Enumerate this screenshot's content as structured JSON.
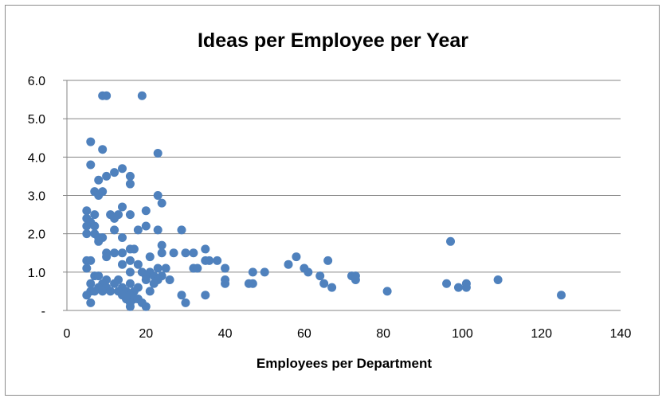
{
  "chart_data": {
    "type": "scatter",
    "title": "Ideas per Employee per Year",
    "xlabel": "Employees per Department",
    "ylabel": "",
    "xlim": [
      0,
      140
    ],
    "ylim": [
      0,
      6
    ],
    "x_ticks": [
      "0",
      "20",
      "40",
      "60",
      "80",
      "100",
      "120",
      "140"
    ],
    "y_ticks": [
      "-",
      "1.0",
      "2.0",
      "3.0",
      "4.0",
      "5.0",
      "6.0"
    ],
    "grid": "horizontal",
    "legend": "none",
    "marker_color": "#4f81bd",
    "points": [
      [
        9,
        5.6
      ],
      [
        10,
        5.6
      ],
      [
        19,
        5.6
      ],
      [
        6,
        4.4
      ],
      [
        9,
        4.2
      ],
      [
        23,
        4.1
      ],
      [
        6,
        3.8
      ],
      [
        14,
        3.7
      ],
      [
        12,
        3.6
      ],
      [
        10,
        3.5
      ],
      [
        16,
        3.5
      ],
      [
        8,
        3.4
      ],
      [
        16,
        3.3
      ],
      [
        7,
        3.1
      ],
      [
        8,
        3.0
      ],
      [
        9,
        3.1
      ],
      [
        23,
        3.0
      ],
      [
        24,
        2.8
      ],
      [
        14,
        2.7
      ],
      [
        5,
        2.6
      ],
      [
        20,
        2.6
      ],
      [
        7,
        2.5
      ],
      [
        11,
        2.5
      ],
      [
        13,
        2.5
      ],
      [
        16,
        2.5
      ],
      [
        5,
        2.4
      ],
      [
        12,
        2.4
      ],
      [
        6,
        2.3
      ],
      [
        5,
        2.2
      ],
      [
        7,
        2.2
      ],
      [
        20,
        2.2
      ],
      [
        12,
        2.1
      ],
      [
        18,
        2.1
      ],
      [
        23,
        2.1
      ],
      [
        29,
        2.1
      ],
      [
        5,
        2.0
      ],
      [
        7,
        2.0
      ],
      [
        8,
        1.9
      ],
      [
        9,
        1.9
      ],
      [
        14,
        1.9
      ],
      [
        8,
        1.8
      ],
      [
        97,
        1.8
      ],
      [
        24,
        1.7
      ],
      [
        16,
        1.6
      ],
      [
        17,
        1.6
      ],
      [
        35,
        1.6
      ],
      [
        10,
        1.5
      ],
      [
        12,
        1.5
      ],
      [
        14,
        1.5
      ],
      [
        24,
        1.5
      ],
      [
        27,
        1.5
      ],
      [
        30,
        1.5
      ],
      [
        32,
        1.5
      ],
      [
        10,
        1.4
      ],
      [
        21,
        1.4
      ],
      [
        58,
        1.4
      ],
      [
        5,
        1.3
      ],
      [
        6,
        1.3
      ],
      [
        16,
        1.3
      ],
      [
        35,
        1.3
      ],
      [
        36,
        1.3
      ],
      [
        38,
        1.3
      ],
      [
        66,
        1.3
      ],
      [
        14,
        1.2
      ],
      [
        18,
        1.2
      ],
      [
        56,
        1.2
      ],
      [
        5,
        1.1
      ],
      [
        23,
        1.1
      ],
      [
        25,
        1.1
      ],
      [
        32,
        1.1
      ],
      [
        33,
        1.1
      ],
      [
        40,
        1.1
      ],
      [
        60,
        1.1
      ],
      [
        16,
        1.0
      ],
      [
        19,
        1.0
      ],
      [
        21,
        1.0
      ],
      [
        47,
        1.0
      ],
      [
        50,
        1.0
      ],
      [
        61,
        1.0
      ],
      [
        7,
        0.9
      ],
      [
        8,
        0.9
      ],
      [
        20,
        0.9
      ],
      [
        22,
        0.9
      ],
      [
        24,
        0.9
      ],
      [
        64,
        0.9
      ],
      [
        72,
        0.9
      ],
      [
        73,
        0.9
      ],
      [
        10,
        0.8
      ],
      [
        13,
        0.8
      ],
      [
        20,
        0.8
      ],
      [
        23,
        0.8
      ],
      [
        26,
        0.8
      ],
      [
        40,
        0.8
      ],
      [
        73,
        0.8
      ],
      [
        109,
        0.8
      ],
      [
        6,
        0.7
      ],
      [
        9,
        0.7
      ],
      [
        12,
        0.7
      ],
      [
        16,
        0.7
      ],
      [
        22,
        0.7
      ],
      [
        40,
        0.7
      ],
      [
        46,
        0.7
      ],
      [
        47,
        0.7
      ],
      [
        65,
        0.7
      ],
      [
        96,
        0.7
      ],
      [
        101,
        0.7
      ],
      [
        8,
        0.6
      ],
      [
        10,
        0.6
      ],
      [
        14,
        0.6
      ],
      [
        18,
        0.6
      ],
      [
        67,
        0.6
      ],
      [
        99,
        0.6
      ],
      [
        101,
        0.6
      ],
      [
        6,
        0.5
      ],
      [
        7,
        0.5
      ],
      [
        9,
        0.5
      ],
      [
        11,
        0.5
      ],
      [
        13,
        0.5
      ],
      [
        15,
        0.5
      ],
      [
        17,
        0.5
      ],
      [
        21,
        0.5
      ],
      [
        81,
        0.5
      ],
      [
        5,
        0.4
      ],
      [
        14,
        0.4
      ],
      [
        16,
        0.4
      ],
      [
        29,
        0.4
      ],
      [
        35,
        0.4
      ],
      [
        125,
        0.4
      ],
      [
        15,
        0.3
      ],
      [
        17,
        0.3
      ],
      [
        18,
        0.3
      ],
      [
        6,
        0.2
      ],
      [
        16,
        0.2
      ],
      [
        19,
        0.2
      ],
      [
        30,
        0.2
      ],
      [
        16,
        0.1
      ],
      [
        20,
        0.1
      ]
    ]
  }
}
